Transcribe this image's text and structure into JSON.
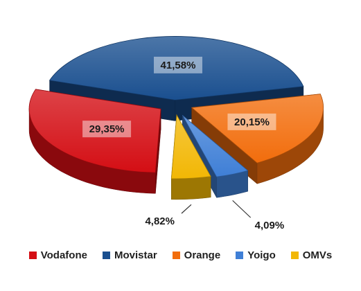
{
  "chart_data": {
    "type": "pie",
    "title": "",
    "legend_position": "bottom",
    "slices": [
      {
        "label": "Vodafone",
        "value": 29.35,
        "value_label": "29,35%",
        "color": "#d40e14"
      },
      {
        "label": "Movistar",
        "value": 41.58,
        "value_label": "41,58%",
        "color": "#1a4f8f"
      },
      {
        "label": "Orange",
        "value": 20.15,
        "value_label": "20,15%",
        "color": "#f26d0c"
      },
      {
        "label": "Yoigo",
        "value": 4.09,
        "value_label": "4,09%",
        "color": "#3f7fd6"
      },
      {
        "label": "OMVs",
        "value": 4.82,
        "value_label": "4,82%",
        "color": "#f2b705"
      }
    ]
  }
}
